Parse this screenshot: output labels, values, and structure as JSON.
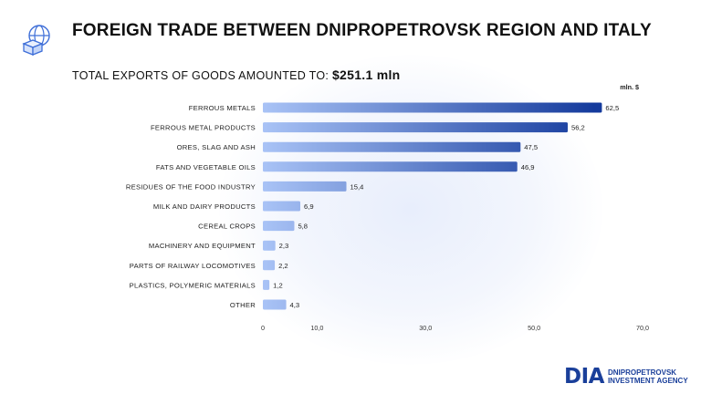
{
  "header": {
    "title": "FOREIGN TRADE BETWEEN DNIPROPETROVSK REGION AND ITALY",
    "subtitle_text": "TOTAL EXPORTS OF GOODS AMOUNTED TO:",
    "subtitle_value": "$251.1 mln",
    "icon": "globe-trade-icon"
  },
  "brand": {
    "mark": "DIA",
    "line1": "DNIPROPETROVSK",
    "line2": "INVESTMENT AGENCY",
    "color": "#1a3f9a"
  },
  "chart_data": {
    "type": "bar",
    "orientation": "horizontal",
    "unit": "mln. $",
    "categories": [
      "FERROUS METALS",
      "FERROUS METAL PRODUCTS",
      "ORES, SLAG AND ASH",
      "FATS AND VEGETABLE OILS",
      "RESIDUES OF THE FOOD INDUSTRY",
      "MILK AND DAIRY PRODUCTS",
      "CEREAL CROPS",
      "MACHINERY AND EQUIPMENT",
      "PARTS OF RAILWAY LOCOMOTIVES",
      "PLASTICS, POLYMERIC MATERIALS",
      "OTHER"
    ],
    "values": [
      62.5,
      56.2,
      47.5,
      46.9,
      15.4,
      6.9,
      5.8,
      2.3,
      2.2,
      1.2,
      4.3
    ],
    "value_labels": [
      "62,5",
      "56,2",
      "47,5",
      "46,9",
      "15,4",
      "6,9",
      "5,8",
      "2,3",
      "2,2",
      "1,2",
      "4,3"
    ],
    "x_ticks": [
      0,
      10,
      30,
      50,
      70
    ],
    "x_tick_labels": [
      "0",
      "10,0",
      "30,0",
      "50,0",
      "70,0"
    ],
    "xlim": [
      0,
      70
    ],
    "grid": false,
    "colors": {
      "bar_light": "#a9c3f6",
      "bar_dark": "#143a9c"
    }
  }
}
